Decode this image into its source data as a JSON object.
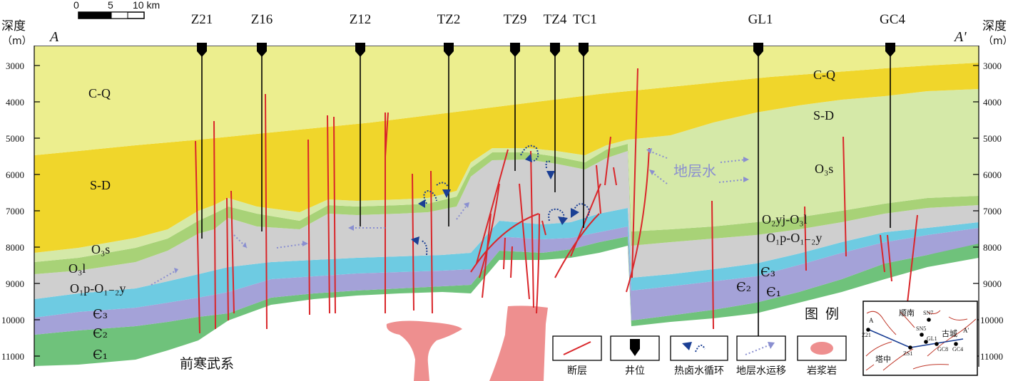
{
  "scale_bar": {
    "ticks": [
      "0",
      "5",
      "10 km"
    ]
  },
  "section_ends": {
    "left": "A",
    "right": "A'"
  },
  "depth_axis": {
    "title": "深度",
    "unit": "（m）",
    "ticks": [
      "3000",
      "4000",
      "5000",
      "6000",
      "7000",
      "8000",
      "9000",
      "10000",
      "11000"
    ]
  },
  "wells": [
    "Z21",
    "Z16",
    "Z12",
    "TZ2",
    "TZ9",
    "TZ4",
    "TC1",
    "GL1",
    "GC4"
  ],
  "units": {
    "cq_left": "C-Q",
    "sd_left": "S-D",
    "o3s_left": "O₃s",
    "o3l_left": "O₃l",
    "o1p_left": "O₁p-O₁₋₂y",
    "c3_left": "Є₃",
    "c2_left": "Є₂",
    "c1_left": "Є₁",
    "basement": "前寒武系",
    "cq_right": "C-Q",
    "sd_right": "S-D",
    "o3s_right": "O₃s",
    "o2yj_right": "O₂yj-O₃l",
    "o1p_right": "O₁p-O₁₋₂y",
    "c3_right": "Є₃",
    "c2_right": "Є₂",
    "c1_right": "Є₁",
    "formation_water": "地层水"
  },
  "legend": {
    "title": "图 例",
    "items": [
      {
        "key": "fault",
        "label": "断层"
      },
      {
        "key": "well",
        "label": "井位"
      },
      {
        "key": "hydrothermal",
        "label": "热卤水循环"
      },
      {
        "key": "water_migration",
        "label": "地层水运移"
      },
      {
        "key": "magma",
        "label": "岩浆岩"
      }
    ]
  },
  "inset_map": {
    "region_north": "顺南",
    "region_tazhong": "塔中",
    "region_gucheng": "古城",
    "wells": [
      "SN7",
      "SN5",
      "GL1",
      "GC8",
      "GC4",
      "Z21",
      "ZS1"
    ],
    "line_start": "A",
    "line_end": "A'"
  },
  "colors": {
    "cq": "#ecee8e",
    "sd": "#f0d62b",
    "o3s": "#d5e9a8",
    "o3l": "#a8d277",
    "o1p": "#cfcfcf",
    "c3": "#6ecbe2",
    "c2": "#a4a2d8",
    "c1": "#6fc27b",
    "magma": "#ee8f8f",
    "fault": "#d9262a",
    "arrow": "#1b3f94",
    "water_arrow": "#8a8fd0"
  }
}
